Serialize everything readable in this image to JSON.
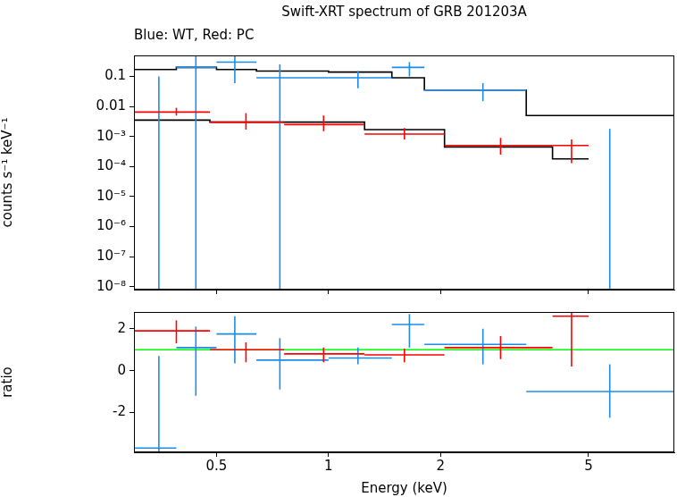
{
  "chart_data": [
    {
      "type": "scatter",
      "title": "Swift-XRT spectrum of GRB 201203A",
      "subtitle": "Blue: WT, Red: PC",
      "y_label": "counts s⁻¹ keV⁻¹",
      "log": true,
      "tick_labels": "y",
      "xlim": [
        0.3,
        8.5
      ],
      "ylim": [
        8e-09,
        0.5
      ],
      "xticks": [
        0.5,
        1,
        2,
        5
      ],
      "yticks": [
        {
          "value": 1e-08,
          "label": "10⁻⁸"
        },
        {
          "value": 1e-07,
          "label": "10⁻⁷"
        },
        {
          "value": 1e-06,
          "label": "10⁻⁶"
        },
        {
          "value": 1e-05,
          "label": "10⁻⁵"
        },
        {
          "value": 0.0001,
          "label": "10⁻⁴"
        },
        {
          "value": 0.001,
          "label": "10⁻³"
        },
        0.01,
        0.1
      ],
      "series": [
        {
          "name": "WT",
          "color": "#1e8ce6",
          "x": [
            0.35,
            0.44,
            0.56,
            0.74,
            1.2,
            1.65,
            2.6,
            5.7
          ],
          "x_low": [
            0.3,
            0.39,
            0.5,
            0.64,
            1.0,
            1.48,
            1.81,
            3.4
          ],
          "x_high": [
            0.39,
            0.5,
            0.64,
            1.0,
            1.48,
            1.81,
            3.4,
            8.5
          ],
          "values": [
            null,
            0.2,
            0.3,
            0.09,
            0.09,
            0.2,
            0.035,
            null
          ],
          "y_low": [
            1e-09,
            1e-09,
            0.06,
            1e-09,
            0.04,
            0.1,
            0.015,
            1e-09
          ],
          "y_high": [
            0.1,
            0.6,
            0.6,
            0.25,
            0.15,
            0.3,
            0.06,
            0.0018
          ]
        },
        {
          "name": "PC",
          "color": "#ff0000",
          "x": [
            0.39,
            0.6,
            0.97,
            1.6,
            2.9,
            4.5
          ],
          "x_low": [
            0.3,
            0.48,
            0.76,
            1.25,
            2.05,
            4.0
          ],
          "x_high": [
            0.48,
            0.76,
            1.25,
            2.05,
            4.0,
            5.0
          ],
          "values": [
            0.0065,
            0.003,
            0.0025,
            0.0012,
            0.0005,
            0.0005
          ],
          "y_low": [
            0.005,
            0.0017,
            0.0015,
            0.0008,
            0.00025,
            0.00013
          ],
          "y_high": [
            0.009,
            0.006,
            0.005,
            0.0019,
            0.0009,
            0.0008
          ]
        },
        {
          "type": "step",
          "color": "#000000",
          "bins": [
            0.3,
            0.39,
            0.5,
            0.64,
            1.0,
            1.48,
            1.81,
            3.4,
            8.5
          ],
          "values": [
            0.17,
            0.2,
            0.17,
            0.15,
            0.14,
            0.09,
            0.035,
            0.005
          ]
        },
        {
          "type": "step",
          "color": "#000000",
          "bins": [
            0.3,
            0.48,
            0.76,
            1.25,
            2.05,
            4.0,
            5.0
          ],
          "values": [
            0.0035,
            0.003,
            0.003,
            0.0017,
            0.00045,
            0.00018
          ]
        }
      ]
    },
    {
      "type": "scatter",
      "x_label": "Energy (keV)",
      "y_label": "ratio",
      "log": "x",
      "xlim": [
        0.3,
        8.5
      ],
      "ylim": [
        -3.9,
        2.8
      ],
      "xticks": [
        0.5,
        1,
        2,
        5
      ],
      "yticks": [
        -2,
        0,
        2
      ],
      "series": [
        {
          "type": "hline",
          "color": "#00ff00",
          "values": [
            1
          ]
        },
        {
          "name": "WT",
          "color": "#1e8ce6",
          "x": [
            0.35,
            0.44,
            0.56,
            0.74,
            1.2,
            1.65,
            2.6,
            5.7
          ],
          "x_low": [
            0.3,
            0.39,
            0.5,
            0.64,
            1.0,
            1.48,
            1.81,
            3.4
          ],
          "x_high": [
            0.39,
            0.5,
            0.64,
            1.0,
            1.48,
            1.81,
            3.4,
            8.5
          ],
          "values": [
            -3.7,
            1.1,
            1.75,
            0.5,
            0.6,
            2.2,
            1.25,
            -1.0
          ],
          "y_low": [
            -5,
            -1.2,
            0.35,
            -0.9,
            0.3,
            1.1,
            0.3,
            -2.25
          ],
          "y_high": [
            0.7,
            2.1,
            2.6,
            1.55,
            1.1,
            2.7,
            2.0,
            0.3
          ]
        },
        {
          "name": "PC",
          "color": "#ff0000",
          "x": [
            0.39,
            0.6,
            0.97,
            1.6,
            2.9,
            4.5
          ],
          "x_low": [
            0.3,
            0.48,
            0.76,
            1.25,
            2.05,
            4.0
          ],
          "x_high": [
            0.48,
            0.76,
            1.25,
            2.05,
            4.0,
            5.0
          ],
          "values": [
            1.9,
            1.0,
            0.8,
            0.75,
            1.1,
            2.6
          ],
          "y_low": [
            1.3,
            0.4,
            0.4,
            0.4,
            0.55,
            0.2
          ],
          "y_high": [
            2.4,
            1.35,
            1.1,
            1.05,
            1.65,
            2.8
          ]
        }
      ]
    }
  ]
}
